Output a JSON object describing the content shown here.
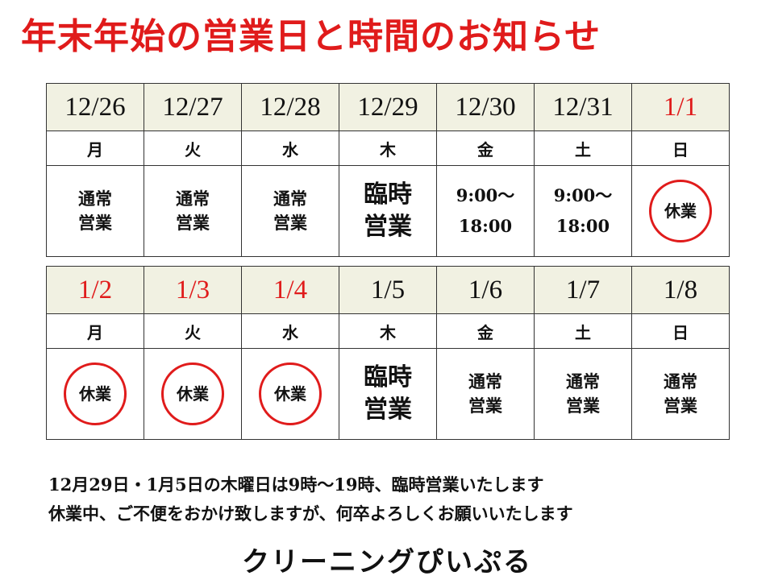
{
  "title": "年末年始の営業日と時間のお知らせ",
  "weeks": [
    {
      "days": [
        {
          "date": "12/26",
          "weekday": "月",
          "status": "通常営業",
          "holiday": false
        },
        {
          "date": "12/27",
          "weekday": "火",
          "status": "通常営業",
          "holiday": false
        },
        {
          "date": "12/28",
          "weekday": "水",
          "status": "通常営業",
          "holiday": false
        },
        {
          "date": "12/29",
          "weekday": "木",
          "status": "臨時営業",
          "holiday": false
        },
        {
          "date": "12/30",
          "weekday": "金",
          "hours_start": "9:00～",
          "hours_end": "18:00",
          "holiday": false
        },
        {
          "date": "12/31",
          "weekday": "土",
          "hours_start": "9:00～",
          "hours_end": "18:00",
          "holiday": false
        },
        {
          "date": "1/1",
          "weekday": "日",
          "closed": "休業",
          "holiday": true
        }
      ]
    },
    {
      "days": [
        {
          "date": "1/2",
          "weekday": "月",
          "closed": "休業",
          "holiday": true
        },
        {
          "date": "1/3",
          "weekday": "火",
          "closed": "休業",
          "holiday": true
        },
        {
          "date": "1/4",
          "weekday": "水",
          "closed": "休業",
          "holiday": true
        },
        {
          "date": "1/5",
          "weekday": "木",
          "status": "臨時営業",
          "holiday": false
        },
        {
          "date": "1/6",
          "weekday": "金",
          "status": "通常営業",
          "holiday": false
        },
        {
          "date": "1/7",
          "weekday": "土",
          "status": "通常営業",
          "holiday": false
        },
        {
          "date": "1/8",
          "weekday": "日",
          "status": "通常営業",
          "holiday": false
        }
      ]
    }
  ],
  "notice": {
    "line1": "12月29日・1月5日の木曜日は9時～19時、臨時営業いたします",
    "line2": "休業中、ご不便をおかけ致しますが、何卒よろしくお願いいたします"
  },
  "shop_name": "クリーニングぴいぷる",
  "colors": {
    "accent_red": "#e01b1b",
    "date_row_bg": "#f1f1e2"
  }
}
